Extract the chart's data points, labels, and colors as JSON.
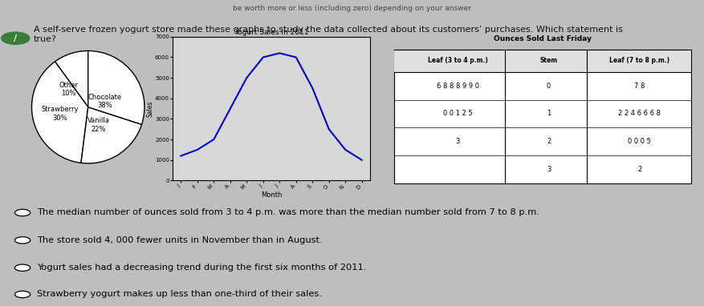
{
  "title_text": "A self-serve frozen yogurt store made these graphs to study the data collected about its customers’ purchases. Which statement is\ntrue?",
  "header_text": "be worth more or less (including zero) depending on your answer.",
  "pie_sizes": [
    10,
    38,
    22,
    30
  ],
  "pie_labels_text": [
    "Other\n10%",
    "Chocolate\n38%",
    "Vanilla\n22%",
    "Strawberry\n30%"
  ],
  "line_title": "Yogurt Sales in 2011",
  "line_ylabel": "Sales",
  "line_xlabel": "Month",
  "line_months": [
    "J",
    "F",
    "M",
    "A",
    "M",
    "J",
    "J",
    "A",
    "S",
    "O",
    "N",
    "D"
  ],
  "line_values": [
    1200,
    1500,
    2000,
    3500,
    5000,
    6000,
    6200,
    6000,
    4500,
    2500,
    1500,
    1000
  ],
  "line_yticks": [
    0,
    1000,
    2000,
    3000,
    4000,
    5000,
    6000,
    7000
  ],
  "line_color": "#0000cc",
  "table_title": "Ounces Sold Last Friday",
  "table_col1": "Leaf (3 to 4 p.m.)",
  "table_col2": "Stem",
  "table_col3": "Leaf (7 to 8 p.m.)",
  "table_rows": [
    [
      "6 8 8 8 9 9 0",
      "0",
      "7 8"
    ],
    [
      "0 0 1 2 5",
      "1",
      "2 2 4 6 6 6 8"
    ],
    [
      "3",
      "2",
      "0 0 0 5"
    ],
    [
      "",
      "3",
      "2"
    ]
  ],
  "answer_choices": [
    "The median number of ounces sold from 3 to 4 p.m. was more than the median number sold from 7 to 8 p.m.",
    "The store sold 4, 000 fewer units in November than in August.",
    "Yogurt sales had a decreasing trend during the first six months of 2011.",
    "Strawberry yogurt makes up less than one-third of their sales."
  ]
}
